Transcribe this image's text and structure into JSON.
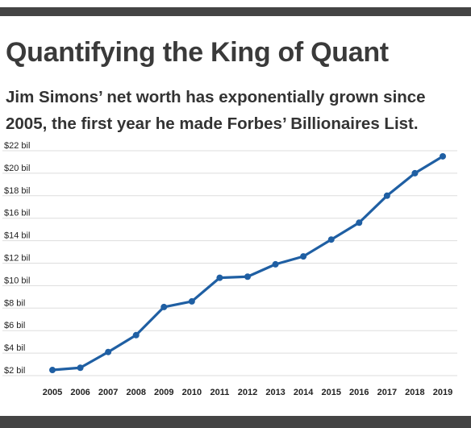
{
  "title": "Quantifying the King of Quant",
  "subtitle": "Jim Simons’ net worth has exponentially grown since 2005, the first year he made Forbes’ Billionaires List.",
  "colors": {
    "bar": "#444444",
    "line": "#1f5fa3",
    "grid": "#dddddd",
    "title": "#3a3a3a"
  },
  "chart_data": {
    "type": "line",
    "x": [
      "2005",
      "2006",
      "2007",
      "2008",
      "2009",
      "2010",
      "2011",
      "2012",
      "2013",
      "2014",
      "2015",
      "2016",
      "2017",
      "2018",
      "2019"
    ],
    "series": [
      {
        "values": [
          2.5,
          2.7,
          4.1,
          5.6,
          8.1,
          8.6,
          10.7,
          10.8,
          11.9,
          12.6,
          14.1,
          15.6,
          18.0,
          20.0,
          21.5
        ]
      }
    ],
    "yticks": [
      "$2 bil",
      "$4 bil",
      "$6 bil",
      "$8 bil",
      "$10 bil",
      "$12 bil",
      "$14 bil",
      "$16 bil",
      "$18 bil",
      "$20 bil",
      "$22 bil"
    ],
    "ytick_values": [
      2,
      4,
      6,
      8,
      10,
      12,
      14,
      16,
      18,
      20,
      22
    ],
    "ylim": [
      2,
      22
    ],
    "grid": true,
    "xlabel": "",
    "ylabel": ""
  }
}
